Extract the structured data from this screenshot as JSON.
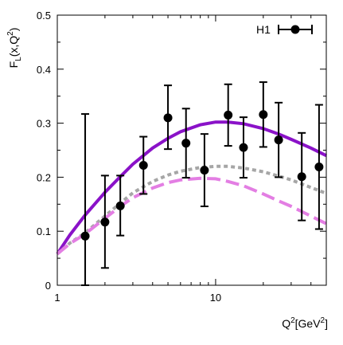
{
  "chart_data": {
    "type": "scatter",
    "y_label": "F",
    "y_label_sub": "L",
    "y_label_args": "(x,Q",
    "y_label_sup": "2",
    "y_label_close": ")",
    "x_label": "Q",
    "x_label_sup": "2",
    "x_label_unit": "[GeV",
    "x_label_unit_sup": "2",
    "x_label_close": "]",
    "x_scale": "log",
    "xlim": [
      1,
      50
    ],
    "ylim": [
      0,
      0.5
    ],
    "x_ticks": [
      {
        "value": 1,
        "label": "1"
      },
      {
        "value": 10,
        "label": "10"
      }
    ],
    "y_ticks": [
      {
        "value": 0,
        "label": "0"
      },
      {
        "value": 0.1,
        "label": "0.1"
      },
      {
        "value": 0.2,
        "label": "0.2"
      },
      {
        "value": 0.3,
        "label": "0.3"
      },
      {
        "value": 0.4,
        "label": "0.4"
      },
      {
        "value": 0.5,
        "label": "0.5"
      }
    ],
    "legend": {
      "label": "H1",
      "position": "top-right"
    },
    "data_points": {
      "name": "H1",
      "color": "#000000",
      "points": [
        {
          "x": 1.5,
          "y": 0.091,
          "err_low": 0.091,
          "err_high": 0.226
        },
        {
          "x": 2.0,
          "y": 0.117,
          "err_low": 0.085,
          "err_high": 0.086
        },
        {
          "x": 2.5,
          "y": 0.147,
          "err_low": 0.055,
          "err_high": 0.056
        },
        {
          "x": 3.5,
          "y": 0.222,
          "err_low": 0.053,
          "err_high": 0.053
        },
        {
          "x": 5.0,
          "y": 0.31,
          "err_low": 0.058,
          "err_high": 0.06
        },
        {
          "x": 6.5,
          "y": 0.263,
          "err_low": 0.064,
          "err_high": 0.064
        },
        {
          "x": 8.5,
          "y": 0.213,
          "err_low": 0.067,
          "err_high": 0.067
        },
        {
          "x": 12.0,
          "y": 0.315,
          "err_low": 0.057,
          "err_high": 0.057
        },
        {
          "x": 15.0,
          "y": 0.255,
          "err_low": 0.056,
          "err_high": 0.056
        },
        {
          "x": 20.0,
          "y": 0.316,
          "err_low": 0.06,
          "err_high": 0.06
        },
        {
          "x": 25.0,
          "y": 0.269,
          "err_low": 0.069,
          "err_high": 0.069
        },
        {
          "x": 35.0,
          "y": 0.201,
          "err_low": 0.081,
          "err_high": 0.081
        },
        {
          "x": 45.0,
          "y": 0.219,
          "err_low": 0.115,
          "err_high": 0.115
        }
      ]
    },
    "curves": [
      {
        "style": "solid",
        "color": "#8a12c8",
        "x": [
          1,
          1.2,
          1.5,
          2,
          2.5,
          3,
          4,
          5,
          6,
          8,
          10,
          12,
          15,
          20,
          25,
          30,
          40,
          50
        ],
        "y": [
          0.058,
          0.093,
          0.13,
          0.172,
          0.201,
          0.224,
          0.254,
          0.272,
          0.284,
          0.297,
          0.302,
          0.302,
          0.299,
          0.29,
          0.28,
          0.27,
          0.254,
          0.24
        ]
      },
      {
        "style": "dotted",
        "color": "#a6a6a6",
        "x": [
          1,
          1.2,
          1.5,
          2,
          2.5,
          3,
          4,
          5,
          6,
          8,
          10,
          12,
          15,
          20,
          25,
          30,
          40,
          50
        ],
        "y": [
          0.058,
          0.078,
          0.097,
          0.128,
          0.152,
          0.171,
          0.192,
          0.204,
          0.211,
          0.218,
          0.22,
          0.22,
          0.217,
          0.21,
          0.202,
          0.195,
          0.181,
          0.17
        ]
      },
      {
        "style": "dashed",
        "color": "#e37ee3",
        "x": [
          1,
          1.2,
          1.5,
          2,
          2.5,
          3,
          4,
          5,
          6,
          8,
          10,
          12,
          15,
          20,
          25,
          30,
          40,
          50
        ],
        "y": [
          0.058,
          0.077,
          0.095,
          0.124,
          0.146,
          0.162,
          0.18,
          0.19,
          0.195,
          0.198,
          0.197,
          0.192,
          0.184,
          0.169,
          0.156,
          0.146,
          0.128,
          0.114
        ]
      }
    ]
  }
}
